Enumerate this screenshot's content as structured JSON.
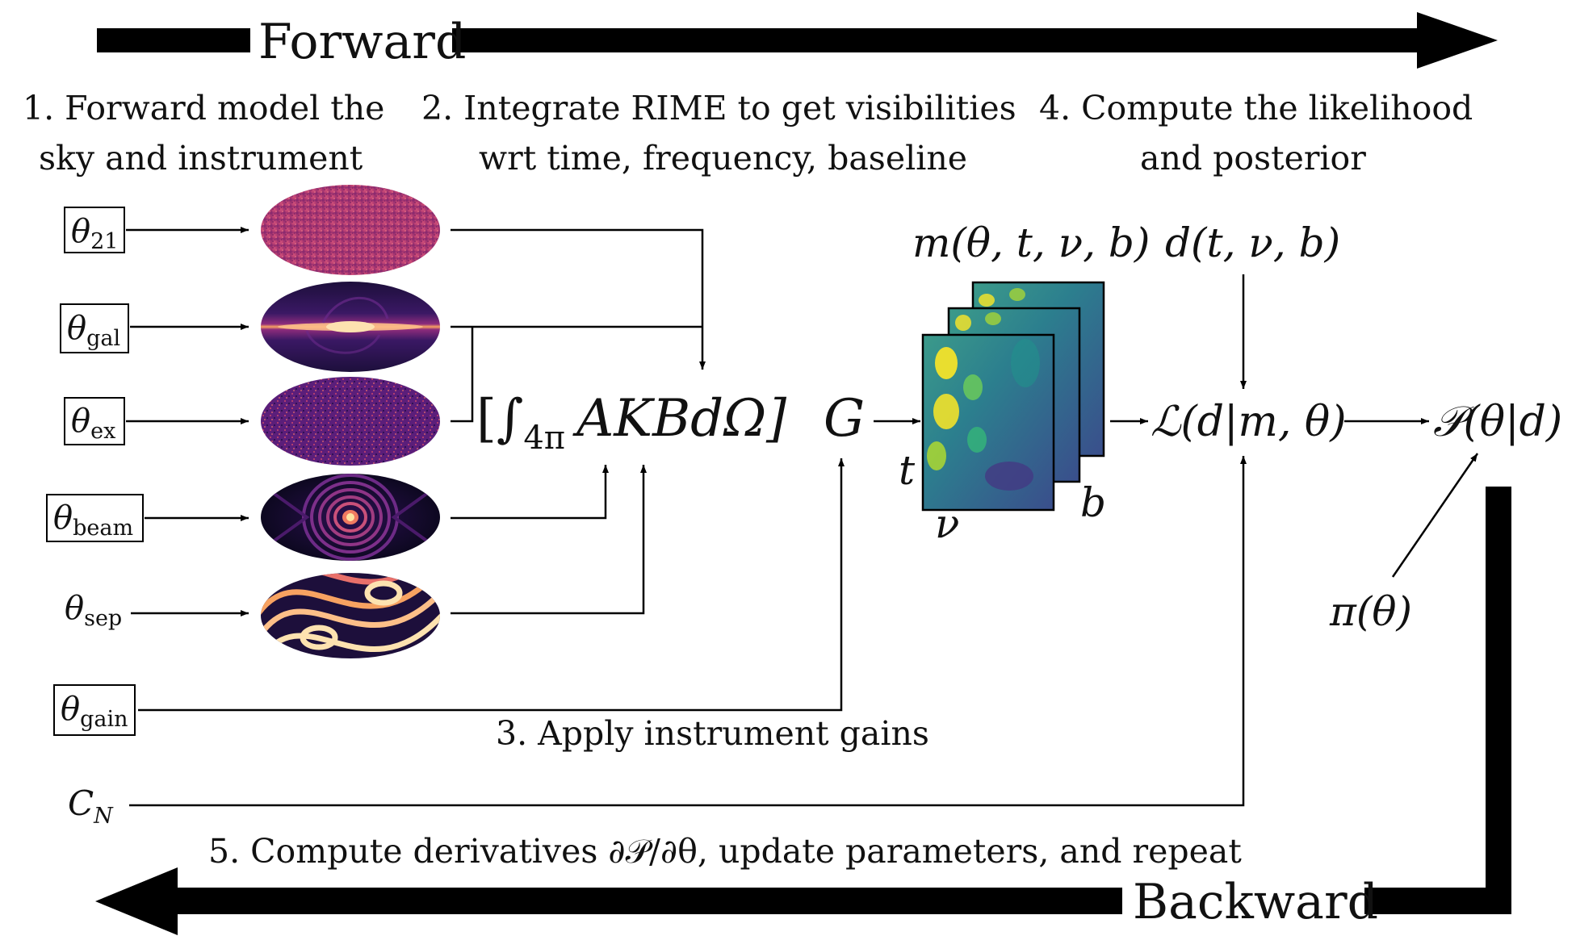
{
  "forward_label": "Forward",
  "backward_label": "Backward",
  "steps": {
    "s1_line1": "1.  Forward model the",
    "s1_line2": "sky and instrument",
    "s2_line1": "2.  Integrate RIME to get visibilities",
    "s2_line2": "wrt time, frequency, baseline",
    "s3": "3.  Apply instrument gains",
    "s4_line1": "4.  Compute the likelihood",
    "s4_line2": "and posterior",
    "s5": "5.  Compute derivatives ∂𝒫/∂θ, update parameters, and repeat"
  },
  "params": {
    "p21": {
      "base": "θ",
      "sub": "21"
    },
    "gal": {
      "base": "θ",
      "sub": "gal"
    },
    "ex": {
      "base": "θ",
      "sub": "ex"
    },
    "beam": {
      "base": "θ",
      "sub": "beam"
    },
    "sep": {
      "base": "θ",
      "sub": "sep"
    },
    "gain": {
      "base": "θ",
      "sub": "gain"
    },
    "noise": {
      "base": "C",
      "sub": "N"
    }
  },
  "equations": {
    "rime_open": "[∫",
    "rime_sub": "4π",
    "rime_body": "AKBdΩ]",
    "gain": "G",
    "model": "m(θ, t, ν, b)",
    "data": "d(t, ν, b)",
    "likelihood": "ℒ(d|m, θ)",
    "posterior": "𝒫(θ|d)",
    "prior": "π(θ)",
    "axis_t": "t",
    "axis_nu": "ν",
    "axis_b": "b"
  },
  "colors": {
    "magma_dark": "#1d0f3b",
    "magma_purple": "#5b1e7a",
    "magma_pink": "#c8456e",
    "magma_peach": "#fdbf88",
    "viridis_blue": "#31688e",
    "viridis_teal": "#1f9e89",
    "viridis_yellow": "#fde725"
  }
}
